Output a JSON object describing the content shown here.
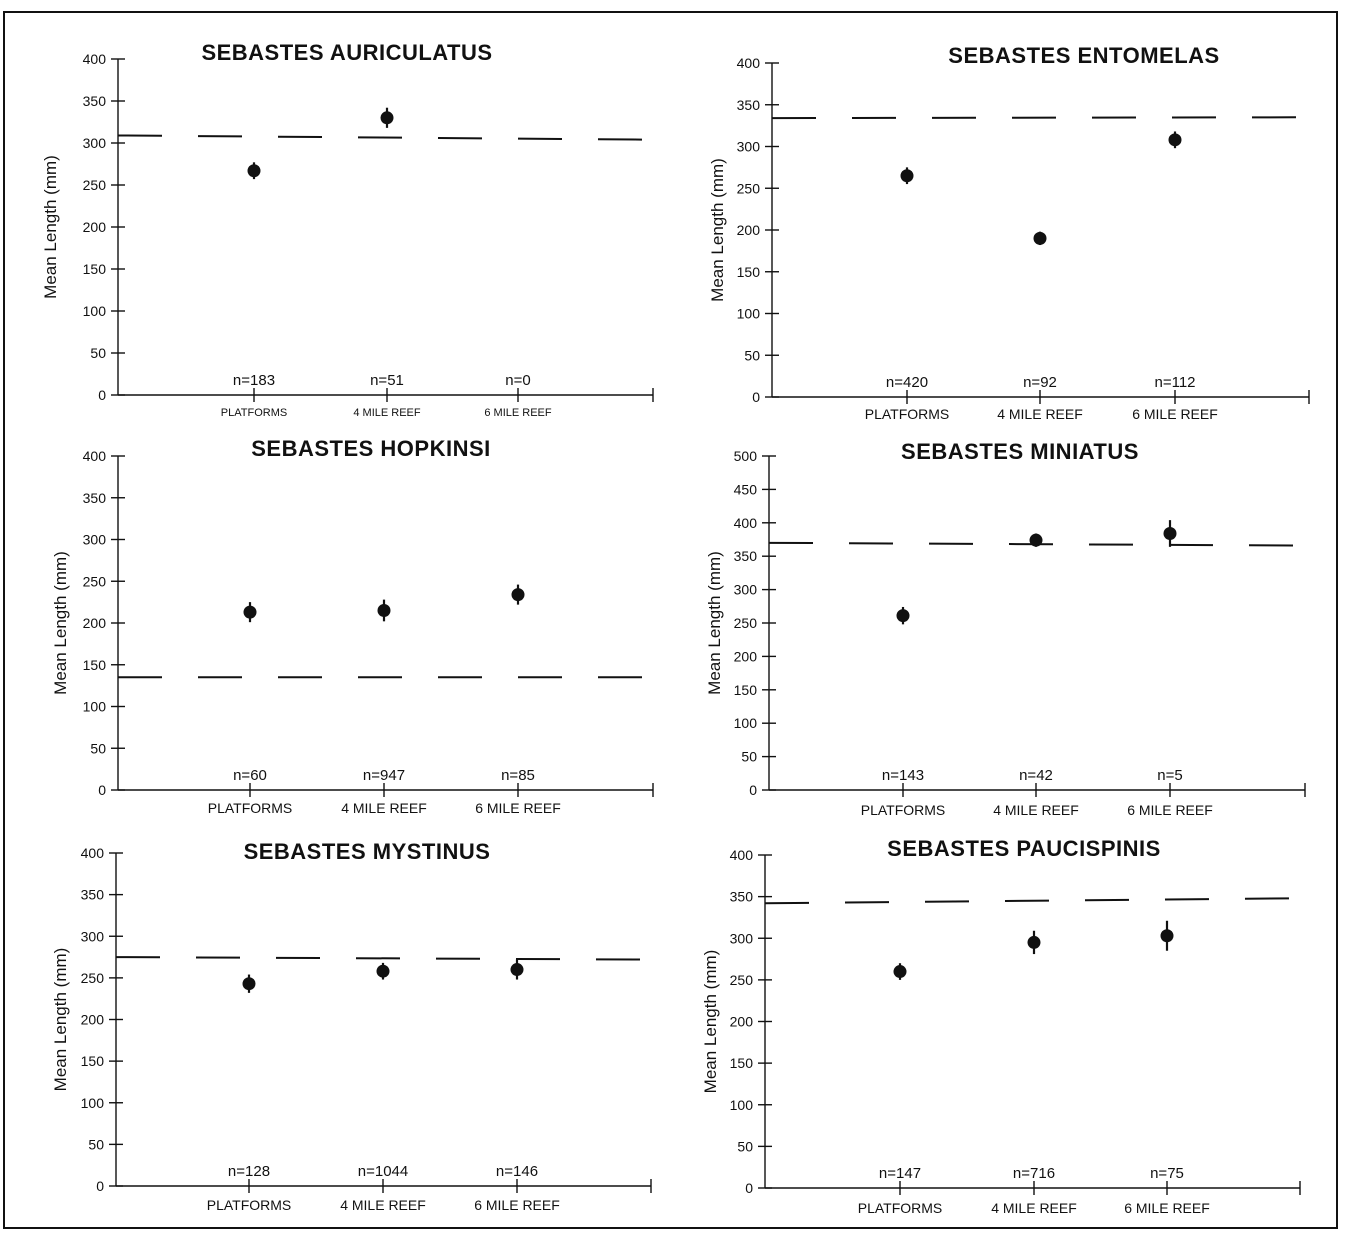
{
  "chart_data": [
    {
      "type": "scatter",
      "title": "SEBASTES AURICULATUS",
      "ylabel": "Mean Length (mm)",
      "ylim": [
        0,
        400
      ],
      "yticks": [
        "0",
        "50",
        "100",
        "150",
        "200",
        "250",
        "300",
        "350",
        "400"
      ],
      "categories": [
        "PLATFORMS",
        "4 MILE REEF",
        "6 MILE REEF"
      ],
      "n_labels": [
        "n=183",
        "n=51",
        "n=0"
      ],
      "values": [
        267,
        330,
        null
      ],
      "error": [
        10,
        12,
        null
      ],
      "reference_line": [
        309,
        304
      ]
    },
    {
      "type": "scatter",
      "title": "SEBASTES ENTOMELAS",
      "ylabel": "Mean Length (mm)",
      "ylim": [
        0,
        400
      ],
      "yticks": [
        "0",
        "50",
        "100",
        "150",
        "200",
        "250",
        "300",
        "350",
        "400"
      ],
      "categories": [
        "PLATFORMS",
        "4 MILE REEF",
        "6 MILE REEF"
      ],
      "n_labels": [
        "n=420",
        "n=92",
        "n=112"
      ],
      "values": [
        265,
        190,
        308
      ],
      "error": [
        10,
        8,
        10
      ],
      "reference_line": [
        334,
        335
      ]
    },
    {
      "type": "scatter",
      "title": "SEBASTES HOPKINSI",
      "ylabel": "Mean Length (mm)",
      "ylim": [
        0,
        400
      ],
      "yticks": [
        "0",
        "50",
        "100",
        "150",
        "200",
        "250",
        "300",
        "350",
        "400"
      ],
      "categories": [
        "PLATFORMS",
        "4 MILE REEF",
        "6 MILE REEF"
      ],
      "n_labels": [
        "n=60",
        "n=947",
        "n=85"
      ],
      "values": [
        213,
        215,
        234
      ],
      "error": [
        12,
        13,
        12
      ],
      "reference_line": [
        135,
        135
      ]
    },
    {
      "type": "scatter",
      "title": "SEBASTES MINIATUS",
      "ylabel": "Mean Length (mm)",
      "ylim": [
        0,
        500
      ],
      "yticks": [
        "0",
        "50",
        "100",
        "150",
        "200",
        "250",
        "300",
        "350",
        "400",
        "450",
        "500"
      ],
      "categories": [
        "PLATFORMS",
        "4 MILE REEF",
        "6 MILE REEF"
      ],
      "n_labels": [
        "n=143",
        "n=42",
        "n=5"
      ],
      "values": [
        261,
        374,
        384
      ],
      "error": [
        13,
        10,
        20
      ],
      "reference_line": [
        370,
        366
      ]
    },
    {
      "type": "scatter",
      "title": "SEBASTES MYSTINUS",
      "ylabel": "Mean Length (mm)",
      "ylim": [
        0,
        400
      ],
      "yticks": [
        "0",
        "50",
        "100",
        "150",
        "200",
        "250",
        "300",
        "350",
        "400"
      ],
      "categories": [
        "PLATFORMS",
        "4 MILE REEF",
        "6 MILE REEF"
      ],
      "n_labels": [
        "n=128",
        "n=1044",
        "n=146"
      ],
      "values": [
        243,
        258,
        260
      ],
      "error": [
        11,
        10,
        12
      ],
      "reference_line": [
        275,
        272
      ]
    },
    {
      "type": "scatter",
      "title": "SEBASTES PAUCISPINIS",
      "ylabel": "Mean Length (mm)",
      "ylim": [
        0,
        400
      ],
      "yticks": [
        "0",
        "50",
        "100",
        "150",
        "200",
        "250",
        "300",
        "350",
        "400"
      ],
      "categories": [
        "PLATFORMS",
        "4 MILE REEF",
        "6 MILE REEF"
      ],
      "n_labels": [
        "n=147",
        "n=716",
        "n=75"
      ],
      "values": [
        260,
        295,
        303
      ],
      "error": [
        10,
        14,
        18
      ],
      "reference_line": [
        342,
        348
      ]
    }
  ]
}
